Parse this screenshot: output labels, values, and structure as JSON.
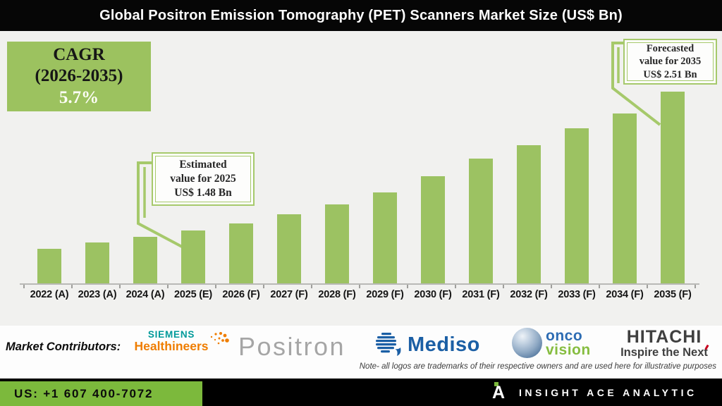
{
  "title": "Global Positron Emission Tomography (PET) Scanners Market Size (US$ Bn)",
  "cagr_box": {
    "label": "CAGR",
    "range": "(2026-2035)",
    "value": "5.7%"
  },
  "callouts": {
    "estimated": {
      "line1": "Estimated",
      "line2": "value for 2025",
      "line3": "US$ 1.48 Bn"
    },
    "forecasted": {
      "line1": "Forecasted",
      "line2": "value for 2035",
      "line3": "US$ 2.51 Bn"
    }
  },
  "chart_data": {
    "type": "bar",
    "title": "Global Positron Emission Tomography (PET) Scanners Market Size (US$ Bn)",
    "xlabel": "",
    "ylabel": "",
    "unit": "US$ Bn",
    "categories": [
      "2022 (A)",
      "2023 (A)",
      "2024 (A)",
      "2025 (E)",
      "2026 (F)",
      "2027 (F)",
      "2028 (F)",
      "2029 (F)",
      "2030 (F)",
      "2031 (F)",
      "2032 (F)",
      "2033 (F)",
      "2034 (F)",
      "2035 (F)"
    ],
    "values": [
      1.34,
      1.39,
      1.43,
      1.48,
      1.53,
      1.6,
      1.67,
      1.76,
      1.88,
      2.01,
      2.11,
      2.24,
      2.35,
      2.51
    ],
    "labeled_values": {
      "2025 (E)": 1.48,
      "2035 (F)": 2.51
    },
    "cagr_2026_2035_percent": 5.7,
    "ylim": [
      1.08,
      2.51
    ],
    "bar_color": "#9cc262",
    "grid": false,
    "legend": false
  },
  "contributors": {
    "label": "Market Contributors:",
    "items": [
      "Siemens Healthineers",
      "Positron",
      "Mediso",
      "OncoVision",
      "Hitachi"
    ],
    "siemens": {
      "top": "SIEMENS",
      "bottom": "Healthineers"
    },
    "positron": {
      "text": "Positron"
    },
    "mediso": {
      "text": "Mediso"
    },
    "oncovision": {
      "top": "onco",
      "bottom": "vision"
    },
    "hitachi": {
      "top": "HITACHI",
      "bottom": "Inspire the Next"
    },
    "note": "Note- all logos are trademarks of their respective owners and are used here for illustrative purposes"
  },
  "footer": {
    "phone": "US: +1 607 400-7072",
    "brand": "INSIGHT ACE ANALYTIC"
  },
  "colors": {
    "accent_green": "#9cc262",
    "callout_border": "#a6c96b",
    "footer_green": "#7cb93c",
    "siemens_teal": "#009a9a",
    "healthineers_orange": "#ef7d00",
    "positron_gray": "#a6a6a6",
    "mediso_blue": "#1b5fa5",
    "onco_blue": "#2d6cb3",
    "vision_green": "#86bd40",
    "hitachi_gray": "#3f3f3f",
    "hitachi_red": "#c8001e"
  }
}
